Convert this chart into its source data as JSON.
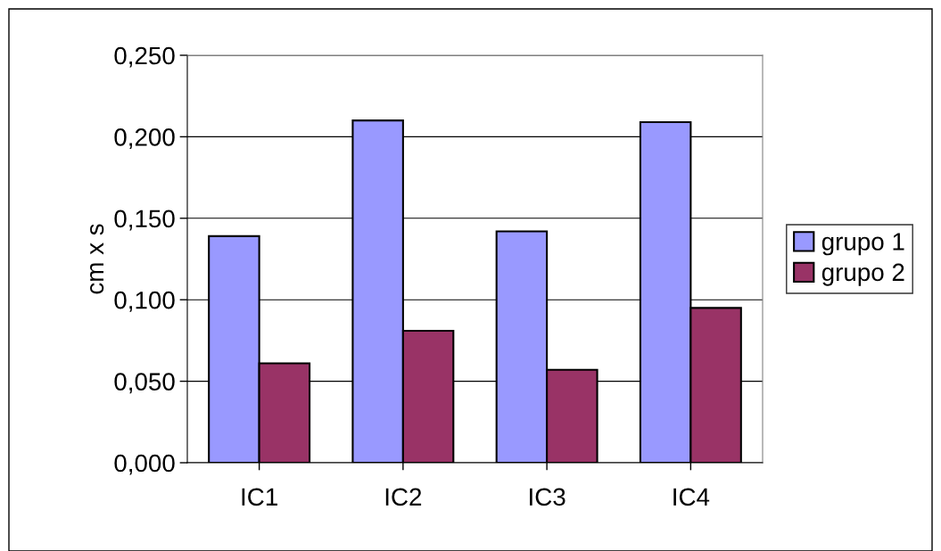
{
  "chart_data": {
    "type": "bar",
    "ylabel": "cm x s",
    "categories": [
      "IC1",
      "IC2",
      "IC3",
      "IC4"
    ],
    "series": [
      {
        "name": "grupo 1",
        "color": "#9999ff",
        "values": [
          0.139,
          0.21,
          0.142,
          0.209
        ]
      },
      {
        "name": "grupo 2",
        "color": "#993366",
        "values": [
          0.061,
          0.081,
          0.057,
          0.095
        ]
      }
    ],
    "ylim": [
      0,
      0.25
    ],
    "yticks": [
      {
        "value": 0,
        "label": "0,000"
      },
      {
        "value": 0.05,
        "label": "0,050"
      },
      {
        "value": 0.1,
        "label": "0,100"
      },
      {
        "value": 0.15,
        "label": "0,150"
      },
      {
        "value": 0.2,
        "label": "0,200"
      },
      {
        "value": 0.25,
        "label": "0,250"
      }
    ],
    "grid": "y",
    "legend": "right"
  }
}
